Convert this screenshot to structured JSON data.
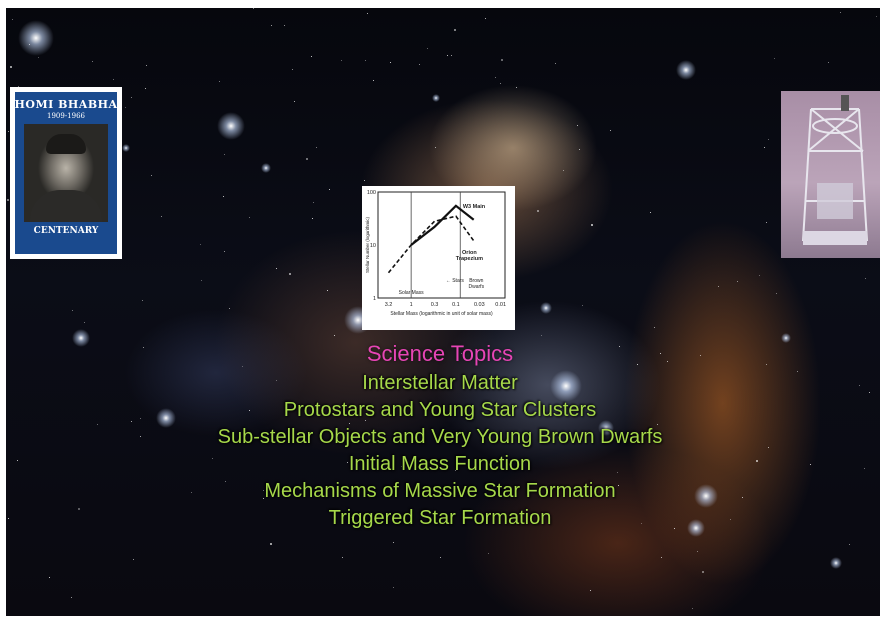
{
  "portrait": {
    "name": "HOMI BHABHA",
    "years": "1909-1966",
    "caption": "CENTENARY"
  },
  "telescope_photo": {
    "description_icon": "telescope-photo"
  },
  "chart_data": {
    "type": "line",
    "xlabel": "Stellar Mass (logarithmic in unit of solar mass)",
    "ylabel": "Stellar Number (logarithmic)",
    "x_scale": "log",
    "x_reversed": true,
    "y_scale": "log",
    "xlim": [
      5.5,
      0.008
    ],
    "ylim": [
      1,
      100
    ],
    "x_ticks": [
      "3.2",
      "1",
      "0.3",
      "0.1",
      "0.03",
      "0.01"
    ],
    "y_ticks": [
      "100",
      "10",
      "1"
    ],
    "annotations": {
      "solar_mass": "Solar Mass",
      "stars": "← Stars",
      "brown_dwarfs": "Brown Dwarfs",
      "w3": "W3 Main",
      "orion": "Orion Trapezium"
    },
    "series": [
      {
        "name": "W3 Main",
        "style": "solid",
        "x": [
          1.0,
          0.3,
          0.1,
          0.04
        ],
        "y": [
          10,
          22,
          55,
          30
        ]
      },
      {
        "name": "Orion Trapezium",
        "style": "dashed",
        "x": [
          3.2,
          1.0,
          0.3,
          0.1,
          0.04
        ],
        "y": [
          3,
          10,
          28,
          35,
          12
        ]
      }
    ]
  },
  "topics": {
    "heading": "Science Topics",
    "items": [
      "Interstellar Matter",
      "Protostars and Young Star Clusters",
      "Sub-stellar Objects and Very Young Brown Dwarfs",
      "Initial Mass Function",
      "Mechanisms of Massive Star Formation",
      "Triggered Star Formation"
    ]
  },
  "colors": {
    "heading": "#e645b5",
    "topic": "#a6d84a",
    "portrait_bg": "#1a4a8e"
  }
}
